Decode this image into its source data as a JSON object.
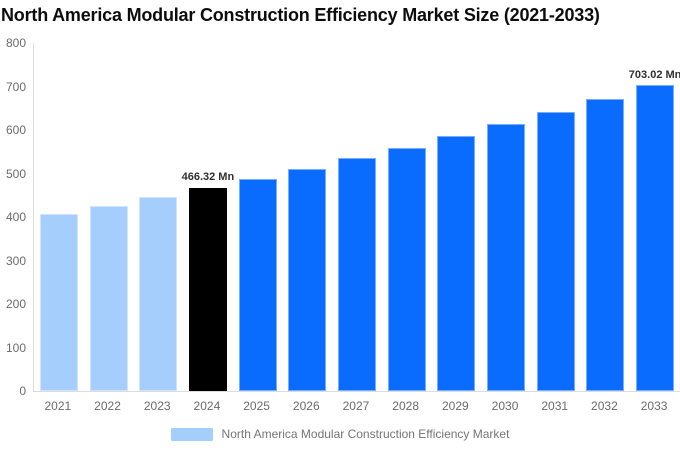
{
  "title": "North America Modular Construction Efficiency Market Size (2021-2033)",
  "legend": {
    "label": "North America Modular Construction Efficiency Market",
    "swatch_color": "#a6cefc"
  },
  "colors": {
    "historical_bar": "#a6cefc",
    "base_year_bar": "#000000",
    "forecast_bar": "#0a6cff",
    "axis_line": "#dddddd",
    "tick_text": "#6b6b6b",
    "data_label_text": "#2f2f2f",
    "title_text": "#0d0d0d",
    "legend_text": "#757575"
  },
  "chart_data": {
    "type": "bar",
    "title": "North America Modular Construction Efficiency Market Size (2021-2033)",
    "xlabel": "",
    "ylabel": "",
    "categories": [
      "2021",
      "2022",
      "2023",
      "2024",
      "2025",
      "2026",
      "2027",
      "2028",
      "2029",
      "2030",
      "2031",
      "2032",
      "2033"
    ],
    "values": [
      406.7,
      425.7,
      445.5,
      466.32,
      488.1,
      510.9,
      534.7,
      559.7,
      585.8,
      613.1,
      641.7,
      671.7,
      703.02
    ],
    "unit": "Mn",
    "bar_colors": [
      "#a6cefc",
      "#a6cefc",
      "#a6cefc",
      "#000000",
      "#0a6cff",
      "#0a6cff",
      "#0a6cff",
      "#0a6cff",
      "#0a6cff",
      "#0a6cff",
      "#0a6cff",
      "#0a6cff",
      "#0a6cff"
    ],
    "bar_labels": [
      "",
      "",
      "",
      "466.32 Mn",
      "",
      "",
      "",
      "",
      "",
      "",
      "",
      "",
      "703.02 Mn"
    ],
    "ylim": [
      0,
      800
    ],
    "ytick_step": 100,
    "grid": false,
    "legend_position": "bottom-center",
    "legend_entries": [
      "North America Modular Construction Efficiency Market"
    ]
  }
}
